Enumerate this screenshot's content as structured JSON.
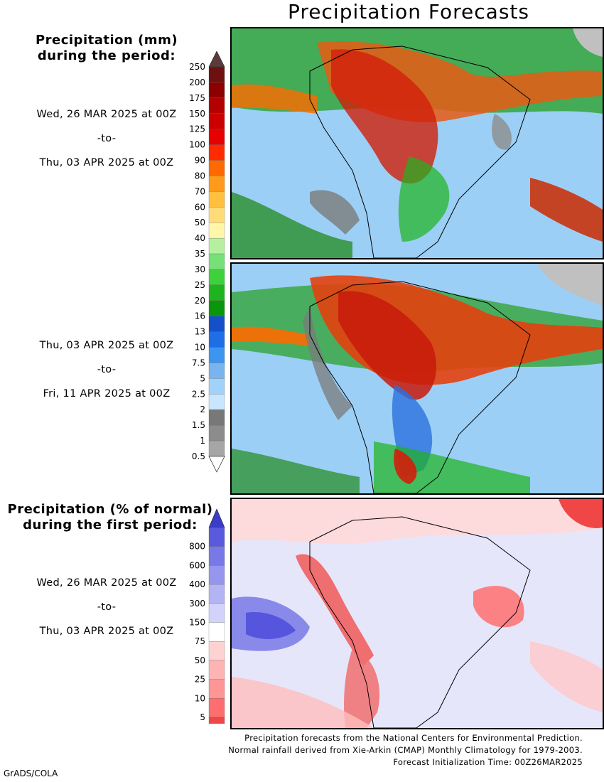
{
  "title": "Precipitation Forecasts",
  "amount_legend": {
    "heading_line1": "Precipitation (mm)",
    "heading_line2": "during the period:",
    "labels": [
      "250",
      "200",
      "175",
      "150",
      "125",
      "100",
      "90",
      "80",
      "70",
      "60",
      "50",
      "40",
      "35",
      "30",
      "25",
      "20",
      "16",
      "13",
      "10",
      "7.5",
      "5",
      "2.5",
      "2",
      "1.5",
      "1",
      "0.5"
    ],
    "colors": [
      "#6e1010",
      "#8c0000",
      "#b30000",
      "#cc0000",
      "#e60000",
      "#ff2a00",
      "#ff6a00",
      "#ff9a1a",
      "#ffc040",
      "#ffdc78",
      "#fff6a8",
      "#b4f0a0",
      "#78e078",
      "#3cd23c",
      "#1eb41e",
      "#0a960a",
      "#1450c8",
      "#1e6ee6",
      "#3c96f0",
      "#78b4f0",
      "#a0d2fa",
      "#c8e6ff",
      "#787878",
      "#8c8c8c",
      "#a6a6a6",
      "#c0c0c0"
    ],
    "top_cap_color": "#5a3c3c"
  },
  "period1": {
    "start": "Wed, 26 MAR 2025 at 00Z",
    "sep": "-to-",
    "end": "Thu, 03 APR 2025 at 00Z"
  },
  "period2": {
    "start": "Thu, 03 APR 2025 at 00Z",
    "sep": "-to-",
    "end": "Fri, 11 APR 2025 at 00Z"
  },
  "percent_legend": {
    "heading_line1": "Precipitation (% of normal)",
    "heading_line2": "during the first period:",
    "labels": [
      "800",
      "600",
      "400",
      "300",
      "150",
      "75",
      "50",
      "25",
      "10",
      "5"
    ],
    "colors": [
      "#5a5adc",
      "#7878e6",
      "#9696ee",
      "#b4b4f4",
      "#d2d2fa",
      "#ffffff",
      "#ffd2d2",
      "#ffb4b4",
      "#ff9696",
      "#ff6e6e",
      "#f04646"
    ],
    "top_cap_color": "#3c3cc8",
    "bottom_cap_color": "#e63232"
  },
  "period3": {
    "start": "Wed, 26 MAR 2025 at 00Z",
    "sep": "-to-",
    "end": "Thu, 03 APR 2025 at 00Z"
  },
  "footer": {
    "line1": "Precipitation forecasts from the National Centers for Environmental Prediction.",
    "line2": "Normal rainfall derived from Xie-Arkin (CMAP) Monthly Climatology for 1979-2003.",
    "line3": "Forecast Initialization Time: 00Z26MAR2025"
  },
  "credit": "GrADS/COLA"
}
